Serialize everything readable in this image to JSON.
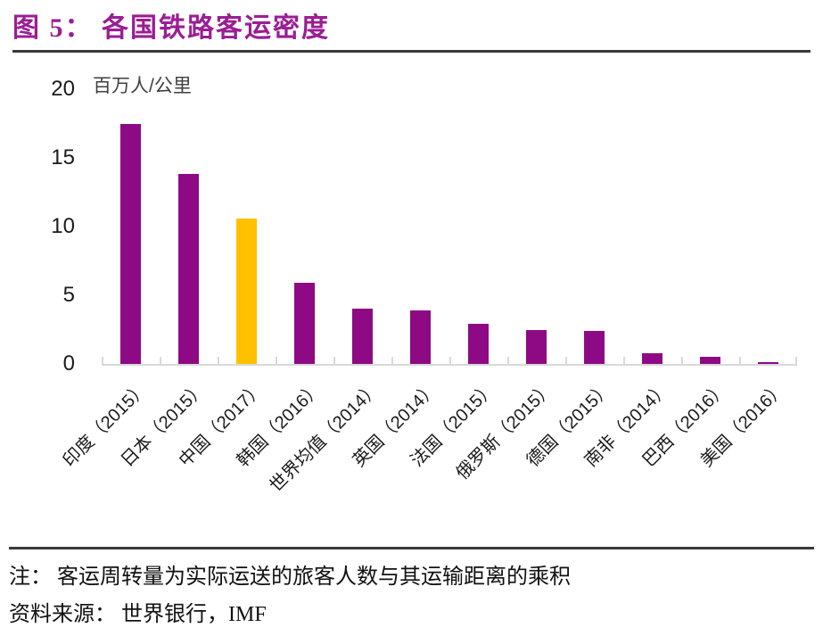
{
  "header": {
    "figure_label": "图 5：",
    "title": "图 5： 各国铁路客运密度"
  },
  "colors": {
    "title": "#9B1D94",
    "bar": "#8E0A84",
    "highlight": "#FFC000",
    "axis": "#D9D9D9",
    "rule": "#3A3A3A"
  },
  "chart_data": {
    "type": "bar",
    "title": "各国铁路客运密度",
    "ylabel": "百万人/公里",
    "xlabel": "",
    "ylim": [
      0,
      20
    ],
    "yticks": [
      0,
      5,
      10,
      15,
      20
    ],
    "grid": false,
    "legend": "none",
    "bar_color": "#8E0A84",
    "highlight_color": "#FFC000",
    "highlight_index": 2,
    "categories": [
      "印度（2015）",
      "日本（2015）",
      "中国（2017）",
      "韩国（2016）",
      "世界均值（2014）",
      "英国（2014）",
      "法国（2015）",
      "俄罗斯（2015）",
      "德国（2015）",
      "南非（2014）",
      "巴西（2016）",
      "美国（2016）"
    ],
    "values": [
      17.5,
      13.8,
      10.6,
      5.9,
      4.0,
      3.9,
      2.9,
      2.5,
      2.4,
      0.8,
      0.5,
      0.1
    ]
  },
  "footer": {
    "note": "注： 客运周转量为实际运送的旅客人数与其运输距离的乘积",
    "source": "资料来源： 世界银行，IMF"
  }
}
